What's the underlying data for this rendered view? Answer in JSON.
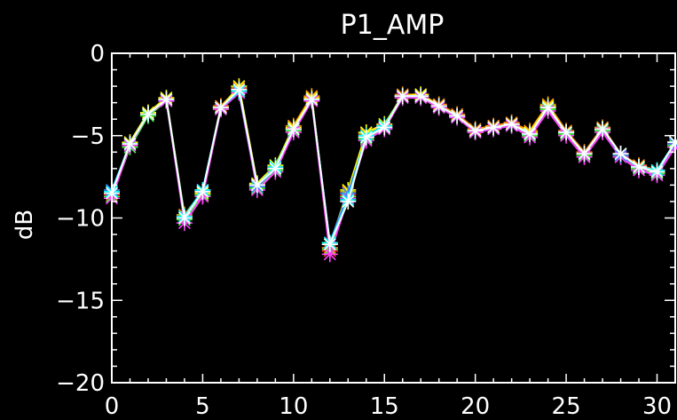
{
  "chart_data": {
    "type": "line",
    "title": "P1_AMP",
    "xlabel": "",
    "ylabel": "dB",
    "xlim": [
      0,
      31
    ],
    "ylim": [
      -20,
      0
    ],
    "x_ticks": [
      0,
      5,
      10,
      15,
      20,
      25,
      30
    ],
    "y_ticks": [
      0,
      -5,
      -10,
      -15,
      -20
    ],
    "x_tick_labels": [
      "0",
      "5",
      "10",
      "15",
      "20",
      "25",
      "30"
    ],
    "y_tick_labels": [
      "0",
      "−5",
      "−10",
      "−15",
      "−20"
    ],
    "grid": false,
    "marker": "asterisk",
    "background": "#000000",
    "axis_color": "#ffffff",
    "x": [
      0,
      1,
      2,
      3,
      4,
      5,
      6,
      7,
      8,
      9,
      10,
      11,
      12,
      13,
      14,
      15,
      16,
      17,
      18,
      19,
      20,
      21,
      22,
      23,
      24,
      25,
      26,
      27,
      28,
      29,
      30,
      31
    ],
    "series": [
      {
        "color": "#ff2020",
        "values": [
          -8.6,
          -5.6,
          -3.7,
          -2.8,
          -10.0,
          -8.6,
          -3.3,
          -2.2,
          -8.1,
          -7.0,
          -4.6,
          -2.7,
          -12.0,
          -8.6,
          -5.1,
          -4.5,
          -2.6,
          -2.6,
          -3.2,
          -3.8,
          -4.7,
          -4.5,
          -4.3,
          -4.9,
          -3.3,
          -4.8,
          -6.1,
          -4.6,
          -6.2,
          -6.9,
          -7.2,
          -5.5
        ]
      },
      {
        "color": "#ff8c00",
        "values": [
          -8.4,
          -5.5,
          -3.6,
          -2.8,
          -9.8,
          -8.4,
          -3.2,
          -2.1,
          -8.0,
          -6.9,
          -4.4,
          -2.6,
          -11.8,
          -8.4,
          -4.9,
          -4.4,
          -2.5,
          -2.5,
          -3.1,
          -3.7,
          -4.6,
          -4.4,
          -4.2,
          -4.7,
          -3.1,
          -4.7,
          -6.0,
          -4.5,
          -6.1,
          -6.8,
          -7.1,
          -5.4
        ]
      },
      {
        "color": "#ffff00",
        "values": [
          -8.5,
          -5.4,
          -3.6,
          -2.7,
          -9.9,
          -8.5,
          -3.3,
          -2.0,
          -7.9,
          -6.8,
          -4.5,
          -2.7,
          -11.6,
          -8.3,
          -4.8,
          -4.3,
          -2.6,
          -2.5,
          -3.2,
          -3.8,
          -4.7,
          -4.5,
          -4.3,
          -4.8,
          -3.2,
          -4.8,
          -6.1,
          -4.6,
          -6.1,
          -6.9,
          -7.2,
          -5.4
        ]
      },
      {
        "color": "#40ff40",
        "values": [
          -8.7,
          -5.7,
          -3.8,
          -2.9,
          -10.1,
          -8.6,
          -3.4,
          -2.3,
          -8.2,
          -7.1,
          -4.7,
          -2.8,
          -11.9,
          -8.7,
          -5.2,
          -4.6,
          -2.7,
          -2.7,
          -3.3,
          -3.9,
          -4.8,
          -4.6,
          -4.4,
          -5.0,
          -3.4,
          -4.9,
          -6.2,
          -4.7,
          -6.2,
          -7.0,
          -7.3,
          -5.6
        ]
      },
      {
        "color": "#ff40ff",
        "values": [
          -8.8,
          -5.6,
          -3.7,
          -2.9,
          -10.3,
          -8.7,
          -3.4,
          -2.4,
          -8.3,
          -7.2,
          -4.8,
          -2.9,
          -12.2,
          -8.8,
          -5.3,
          -4.6,
          -2.7,
          -2.7,
          -3.3,
          -3.9,
          -4.8,
          -4.6,
          -4.4,
          -5.1,
          -3.5,
          -5.0,
          -6.3,
          -4.8,
          -6.3,
          -7.1,
          -7.4,
          -5.7
        ]
      },
      {
        "color": "#4080ff",
        "values": [
          -8.3,
          -5.5,
          -3.7,
          -2.8,
          -10.0,
          -8.3,
          -3.3,
          -2.2,
          -8.1,
          -7.0,
          -4.6,
          -2.8,
          -11.5,
          -8.5,
          -5.1,
          -4.5,
          -2.6,
          -2.6,
          -3.2,
          -3.8,
          -4.7,
          -4.5,
          -4.3,
          -4.9,
          -3.3,
          -4.8,
          -6.1,
          -4.6,
          -6.2,
          -6.9,
          -7.2,
          -5.5
        ]
      },
      {
        "color": "#00ffff",
        "values": [
          -8.4,
          -5.5,
          -3.7,
          -2.8,
          -9.9,
          -8.3,
          -3.3,
          -2.3,
          -8.0,
          -6.9,
          -4.6,
          -2.8,
          -11.5,
          -8.9,
          -5.0,
          -4.4,
          -2.6,
          -2.6,
          -3.2,
          -3.8,
          -4.7,
          -4.5,
          -4.3,
          -4.9,
          -3.3,
          -4.8,
          -6.1,
          -4.6,
          -6.1,
          -6.9,
          -7.1,
          -5.4
        ]
      },
      {
        "color": "#ffffff",
        "values": [
          -8.5,
          -5.5,
          -3.7,
          -2.8,
          -10.0,
          -8.4,
          -3.3,
          -2.2,
          -8.0,
          -7.0,
          -4.6,
          -2.8,
          -11.6,
          -9.0,
          -5.1,
          -4.5,
          -2.6,
          -2.6,
          -3.2,
          -3.8,
          -4.7,
          -4.5,
          -4.3,
          -4.9,
          -3.3,
          -4.8,
          -6.1,
          -4.6,
          -6.1,
          -6.9,
          -7.2,
          -5.4
        ]
      }
    ]
  }
}
